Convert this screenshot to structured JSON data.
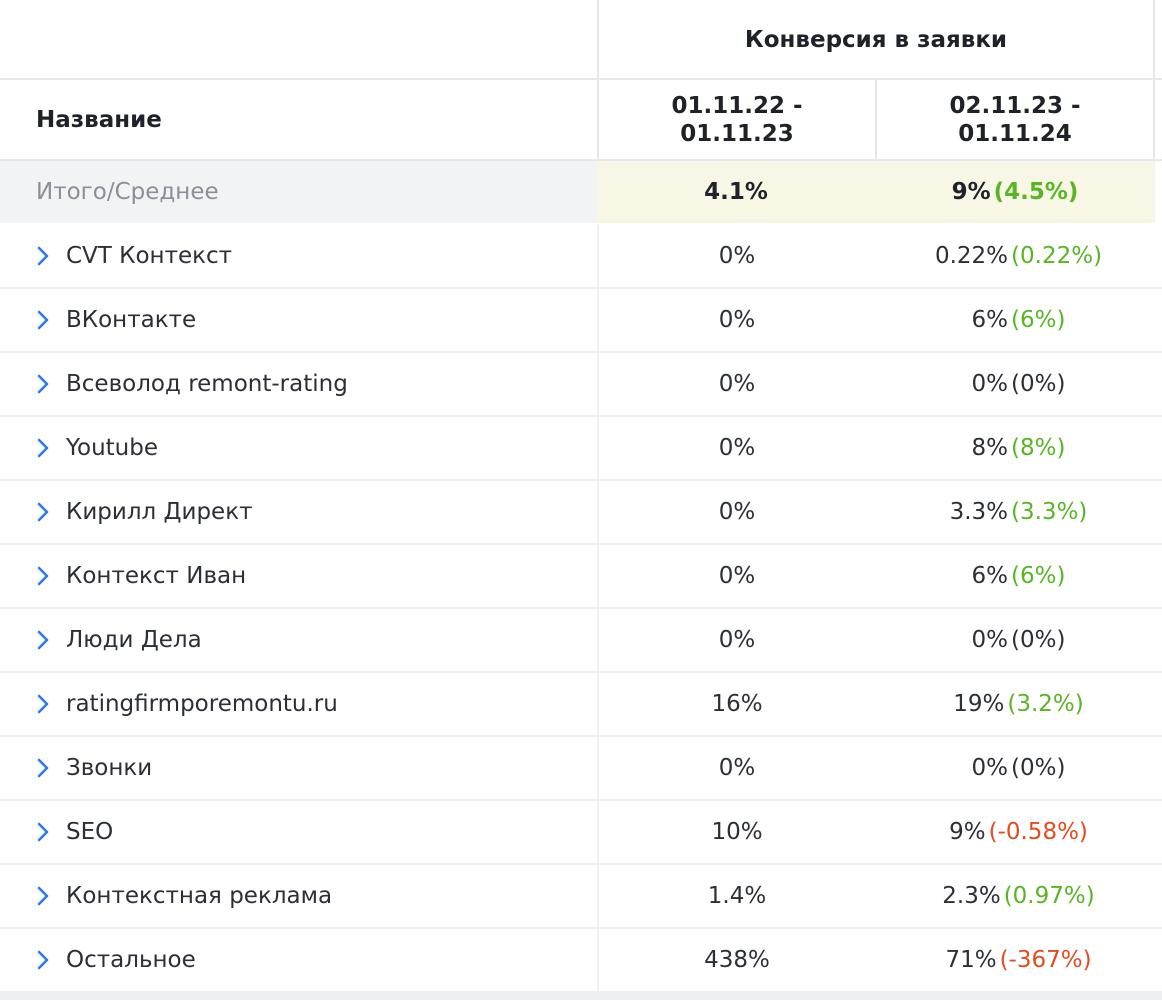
{
  "header": {
    "group_title": "Конверсия в заявки",
    "name_column": "Название",
    "period_1": "01.11.22 -\n01.11.23",
    "period_2": "02.11.23 -\n01.11.24"
  },
  "colors": {
    "positive": "#58b526",
    "negative": "#e24c1f",
    "chevron": "#2f7be0",
    "total_highlight": "#f8f6e5"
  },
  "total": {
    "label": "Итого/Среднее",
    "value_1": "4.1%",
    "value_2": "9%",
    "diff_2": "(4.5%)",
    "diff_sign": "pos"
  },
  "rows": [
    {
      "name": "CVT Контекст",
      "value_1": "0%",
      "value_2": "0.22%",
      "diff_2": "(0.22%)",
      "diff_sign": "pos"
    },
    {
      "name": "ВКонтакте",
      "value_1": "0%",
      "value_2": "6%",
      "diff_2": "(6%)",
      "diff_sign": "pos"
    },
    {
      "name": "Всеволод remont-rating",
      "value_1": "0%",
      "value_2": "0%",
      "diff_2": "(0%)",
      "diff_sign": "neu"
    },
    {
      "name": "Youtube",
      "value_1": "0%",
      "value_2": "8%",
      "diff_2": "(8%)",
      "diff_sign": "pos"
    },
    {
      "name": "Кирилл Директ",
      "value_1": "0%",
      "value_2": "3.3%",
      "diff_2": "(3.3%)",
      "diff_sign": "pos"
    },
    {
      "name": "Контекст Иван",
      "value_1": "0%",
      "value_2": "6%",
      "diff_2": "(6%)",
      "diff_sign": "pos"
    },
    {
      "name": "Люди Дела",
      "value_1": "0%",
      "value_2": "0%",
      "diff_2": "(0%)",
      "diff_sign": "neu"
    },
    {
      "name": "ratingfirmporemontu.ru",
      "value_1": "16%",
      "value_2": "19%",
      "diff_2": "(3.2%)",
      "diff_sign": "pos"
    },
    {
      "name": "Звонки",
      "value_1": "0%",
      "value_2": "0%",
      "diff_2": "(0%)",
      "diff_sign": "neu"
    },
    {
      "name": "SEO",
      "value_1": "10%",
      "value_2": "9%",
      "diff_2": "(-0.58%)",
      "diff_sign": "neg"
    },
    {
      "name": "Контекстная реклама",
      "value_1": "1.4%",
      "value_2": "2.3%",
      "diff_2": "(0.97%)",
      "diff_sign": "pos"
    },
    {
      "name": "Остальное",
      "value_1": "438%",
      "value_2": "71%",
      "diff_2": "(-367%)",
      "diff_sign": "neg"
    }
  ],
  "row_icon": "chevron-right-icon"
}
